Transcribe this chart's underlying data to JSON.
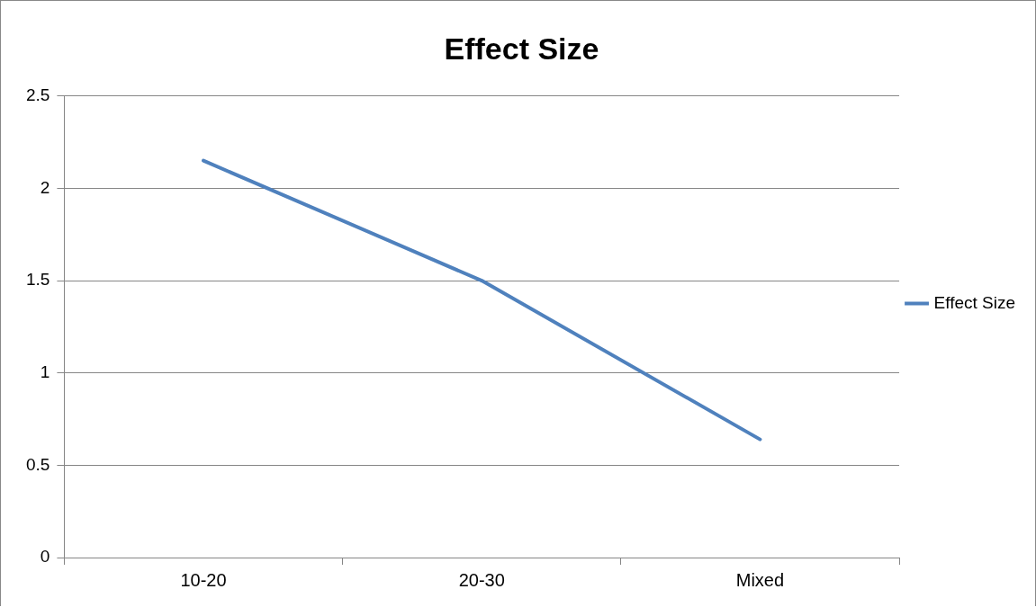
{
  "chart_data": {
    "type": "line",
    "title": "Effect Size",
    "categories": [
      "10-20",
      "20-30",
      "Mixed"
    ],
    "series": [
      {
        "name": "Effect Size",
        "color": "#4f81bd",
        "values": [
          2.15,
          1.5,
          0.64
        ]
      }
    ],
    "ylim": [
      0,
      2.5
    ],
    "yticks": [
      0,
      0.5,
      1,
      1.5,
      2,
      2.5
    ],
    "grid": "y",
    "legend": "right",
    "marker": "none",
    "line_style": "solid"
  }
}
